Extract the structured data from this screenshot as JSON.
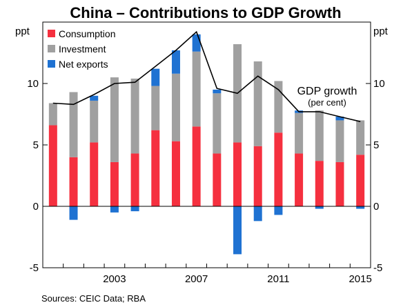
{
  "chart_data": {
    "type": "bar",
    "title": "China – Contributions to GDP Growth",
    "y_unit_left": "ppt",
    "y_unit_right": "ppt",
    "ylim": [
      -5,
      15
    ],
    "yticks": [
      -5,
      0,
      5,
      10
    ],
    "years": [
      2000,
      2001,
      2002,
      2003,
      2004,
      2005,
      2006,
      2007,
      2008,
      2009,
      2010,
      2011,
      2012,
      2013,
      2014,
      2015
    ],
    "xtick_labels": [
      "2003",
      "2007",
      "2011",
      "2015"
    ],
    "xtick_years": [
      2003,
      2007,
      2011,
      2015
    ],
    "series": [
      {
        "name": "Consumption",
        "color": "#f5303f",
        "values": [
          6.6,
          4.0,
          5.2,
          3.6,
          4.3,
          6.2,
          5.3,
          6.5,
          4.3,
          5.2,
          4.9,
          6.0,
          4.3,
          3.7,
          3.6,
          4.2
        ]
      },
      {
        "name": "Investment",
        "color": "#a0a0a0",
        "values": [
          1.8,
          5.3,
          3.4,
          6.9,
          6.1,
          3.6,
          5.5,
          6.1,
          4.9,
          8.0,
          6.9,
          4.2,
          3.3,
          4.1,
          3.4,
          2.8
        ]
      },
      {
        "name": "Net exports",
        "color": "#1f72d2",
        "values": [
          0.0,
          -1.1,
          0.4,
          -0.5,
          -0.4,
          1.4,
          1.9,
          1.4,
          0.3,
          -3.9,
          -1.2,
          -0.7,
          0.2,
          -0.2,
          0.3,
          -0.2
        ]
      }
    ],
    "gdp_growth": {
      "name": "GDP growth",
      "sub": "(per cent)",
      "color": "#000000",
      "values": [
        8.4,
        8.3,
        9.1,
        10.0,
        10.1,
        11.4,
        12.7,
        14.2,
        9.6,
        9.2,
        10.6,
        9.5,
        7.7,
        7.7,
        7.3,
        6.9
      ]
    },
    "legend_position": "top-left",
    "grid": false
  },
  "source_text": "Sources:   CEIC Data; RBA"
}
